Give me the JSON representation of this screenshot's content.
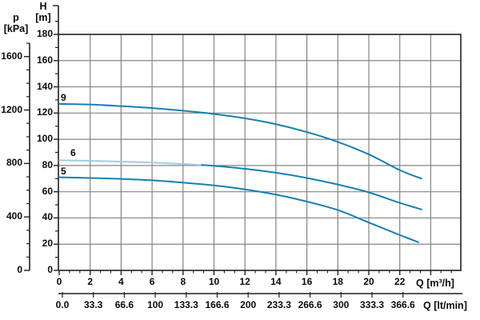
{
  "colors": {
    "curve_dark": "#1580b2",
    "curve_light": "#9ccfe0",
    "grid": "#848484",
    "border": "#1f1f1f",
    "axis": "#1f1f1f",
    "text": "#0a0a0a",
    "background": "#ffffff"
  },
  "axes": {
    "pressure": {
      "title_line1": "p",
      "title_line2": "[kPa]",
      "tick_labels": [
        "0",
        "400",
        "800",
        "1200",
        "1600"
      ]
    },
    "head": {
      "title_line1": "H",
      "title_line2": "[m]",
      "tick_labels": [
        "0",
        "20",
        "40",
        "60",
        "80",
        "100",
        "120",
        "140",
        "160",
        "180"
      ]
    },
    "flow_m3h": {
      "title": "Q [m³/h]",
      "tick_labels": [
        "0",
        "2",
        "4",
        "6",
        "8",
        "10",
        "12",
        "14",
        "16",
        "18",
        "20",
        "22"
      ]
    },
    "flow_ltmin": {
      "title": "Q [lt/min]",
      "tick_labels": [
        "0.0",
        "33.3",
        "66.6",
        "100",
        "133.3",
        "166.6",
        "200",
        "233.3",
        "266.6",
        "300",
        "333.3",
        "366.6"
      ]
    }
  },
  "chart_data": {
    "type": "line",
    "title": "",
    "xlabel": "Q [m³/h]",
    "x2label": "Q [lt/min]",
    "ylabel": "H [m]",
    "y2label": "p [kPa]",
    "xlim": [
      0,
      26
    ],
    "ylim": [
      0,
      180
    ],
    "x2lim_ltmin": [
      0,
      433
    ],
    "y2lim_kpa": [
      0,
      1700
    ],
    "grid": true,
    "grid_x_step_m3h": 2,
    "grid_y_step_m": 20,
    "series": [
      {
        "name": "curve-9",
        "curve_label": "9",
        "color_key": "curve_dark",
        "points_q_h": [
          [
            0,
            127
          ],
          [
            2,
            126.5
          ],
          [
            4,
            125.3
          ],
          [
            6,
            123.8
          ],
          [
            8,
            121.8
          ],
          [
            10,
            119.3
          ],
          [
            12,
            116
          ],
          [
            14,
            111.5
          ],
          [
            16,
            105.5
          ],
          [
            18,
            98
          ],
          [
            20,
            88.5
          ],
          [
            22,
            76.5
          ],
          [
            23.4,
            70
          ]
        ]
      },
      {
        "name": "curve-6-light",
        "curve_label": "6",
        "color_key": "curve_light",
        "points_q_h": [
          [
            0,
            84
          ],
          [
            2,
            83.6
          ],
          [
            4,
            83
          ],
          [
            6,
            82.2
          ],
          [
            8,
            81.2
          ],
          [
            9.2,
            80.4
          ]
        ]
      },
      {
        "name": "curve-6-dark",
        "curve_label": "",
        "color_key": "curve_dark",
        "points_q_h": [
          [
            9.2,
            80.4
          ],
          [
            10,
            79.8
          ],
          [
            12,
            77.5
          ],
          [
            14,
            74.5
          ],
          [
            16,
            70.5
          ],
          [
            18,
            65.5
          ],
          [
            20,
            59.5
          ],
          [
            22,
            51.5
          ],
          [
            23.4,
            46.5
          ]
        ]
      },
      {
        "name": "curve-5",
        "curve_label": "5",
        "color_key": "curve_dark",
        "points_q_h": [
          [
            0,
            71
          ],
          [
            2,
            70.5
          ],
          [
            4,
            69.8
          ],
          [
            6,
            68.7
          ],
          [
            8,
            67
          ],
          [
            10,
            64.8
          ],
          [
            12,
            61.8
          ],
          [
            14,
            57.8
          ],
          [
            16,
            52.5
          ],
          [
            18,
            46
          ],
          [
            20,
            36.5
          ],
          [
            22,
            27
          ],
          [
            23.2,
            21.5
          ]
        ]
      }
    ]
  }
}
